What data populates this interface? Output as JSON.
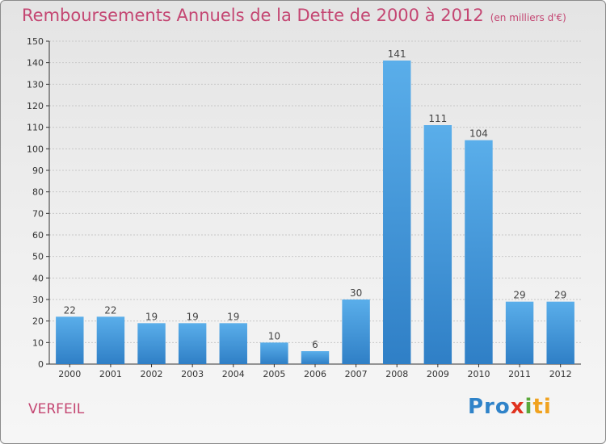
{
  "title": "Remboursements Annuels de la Dette de 2000 à 2012",
  "subtitle": "(en milliers d'€)",
  "location": "VERFEIL",
  "logo": {
    "p1": "Pro",
    "p2": "x",
    "p3": "i",
    "p4": "ti"
  },
  "colors": {
    "bar": "#3a8fd6",
    "title": "#c44672"
  },
  "chart_data": {
    "type": "bar",
    "title": "Remboursements Annuels de la Dette de 2000 à 2012",
    "subtitle": "(en milliers d'€)",
    "xlabel": "",
    "ylabel": "",
    "categories": [
      "2000",
      "2001",
      "2002",
      "2003",
      "2004",
      "2005",
      "2006",
      "2007",
      "2008",
      "2009",
      "2010",
      "2011",
      "2012"
    ],
    "values": [
      22,
      22,
      19,
      19,
      19,
      10,
      6,
      30,
      141,
      111,
      104,
      29,
      29
    ],
    "ylim": [
      0,
      150
    ],
    "yticks": [
      0,
      10,
      20,
      30,
      40,
      50,
      60,
      70,
      80,
      90,
      100,
      110,
      120,
      130,
      140,
      150
    ],
    "grid": true,
    "legend": "none"
  }
}
